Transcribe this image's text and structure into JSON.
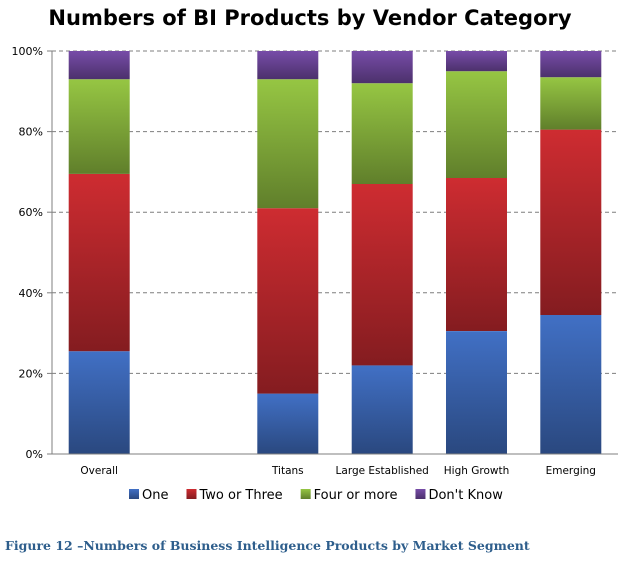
{
  "chart_data": {
    "type": "bar",
    "stacked": true,
    "title": "Numbers of BI Products by Vendor Category",
    "xlabel": "",
    "ylabel": "",
    "ylim": [
      0,
      100
    ],
    "yticks": [
      "0%",
      "20%",
      "40%",
      "60%",
      "80%",
      "100%"
    ],
    "grid": true,
    "legend_position": "bottom",
    "categories": [
      "Overall",
      "",
      "Titans",
      "Large Established",
      "High Growth",
      "Emerging"
    ],
    "series": [
      {
        "name": "One",
        "color": "#3a64b0",
        "values": [
          25.5,
          null,
          15,
          22,
          30.5,
          34.5
        ]
      },
      {
        "name": "Two or Three",
        "color": "#b8272c",
        "values": [
          44,
          null,
          46,
          45,
          38,
          46
        ]
      },
      {
        "name": "Four or more",
        "color": "#86b13c",
        "values": [
          23.5,
          null,
          32,
          25,
          26.5,
          13
        ]
      },
      {
        "name": "Don't Know",
        "color": "#6a4496",
        "values": [
          7,
          null,
          7,
          8,
          5,
          6.5
        ]
      }
    ]
  },
  "caption": "Figure 12 –Numbers of Business Intelligence Products by Market Segment"
}
